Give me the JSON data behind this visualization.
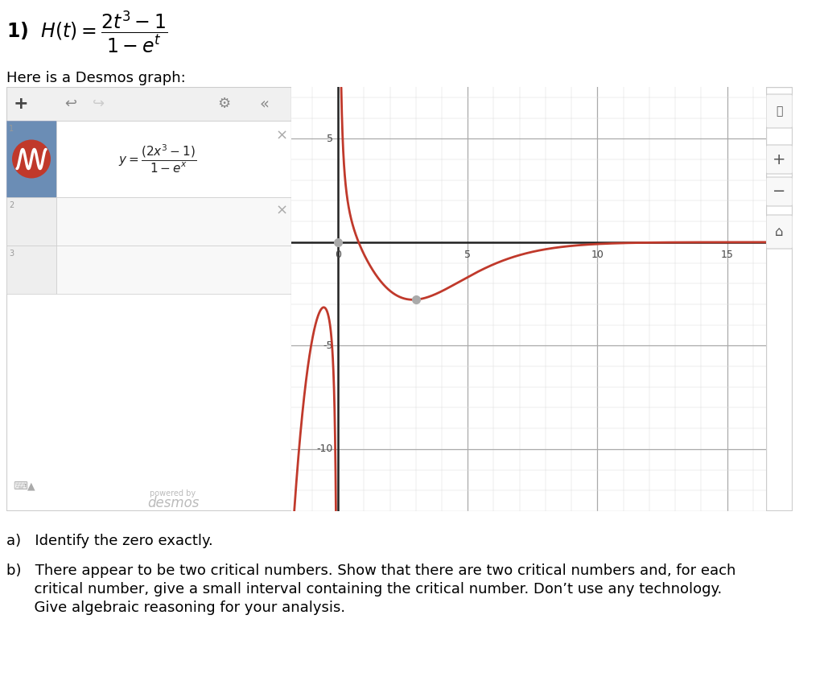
{
  "bg_color": "#ffffff",
  "title_fontsize": 17,
  "subtitle_fontsize": 13,
  "x_min": -1.8,
  "x_max": 16.5,
  "y_min": -13,
  "y_max": 7.5,
  "curve_color": "#c0392b",
  "grid_minor_color": "#dddddd",
  "grid_major_color": "#aaaaaa",
  "axis_color": "#222222",
  "x_tick_labels": [
    0,
    5,
    10,
    15
  ],
  "y_tick_labels": [
    -10,
    -5,
    5
  ],
  "question_a": "a)   Identify the zero exactly.",
  "question_b_line1": "b)   There appear to be two critical numbers. Show that there are two critical numbers and, for each",
  "question_b_line2": "      critical number, give a small interval containing the critical number. Don’t use any technology.",
  "question_b_line3": "      Give algebraic reasoning for your analysis.",
  "desmos_header": "Here is a Desmos graph:",
  "sidebar_toolbar_bg": "#f0f0f0",
  "sidebar_row1_bg": "#dce9f7",
  "sidebar_row1_left_bg": "#6b8db5",
  "sidebar_row_empty_bg": "#f8f8f8",
  "sidebar_border": "#cccccc",
  "right_panel_bg": "#f0f0f0",
  "right_panel_border": "#cccccc"
}
